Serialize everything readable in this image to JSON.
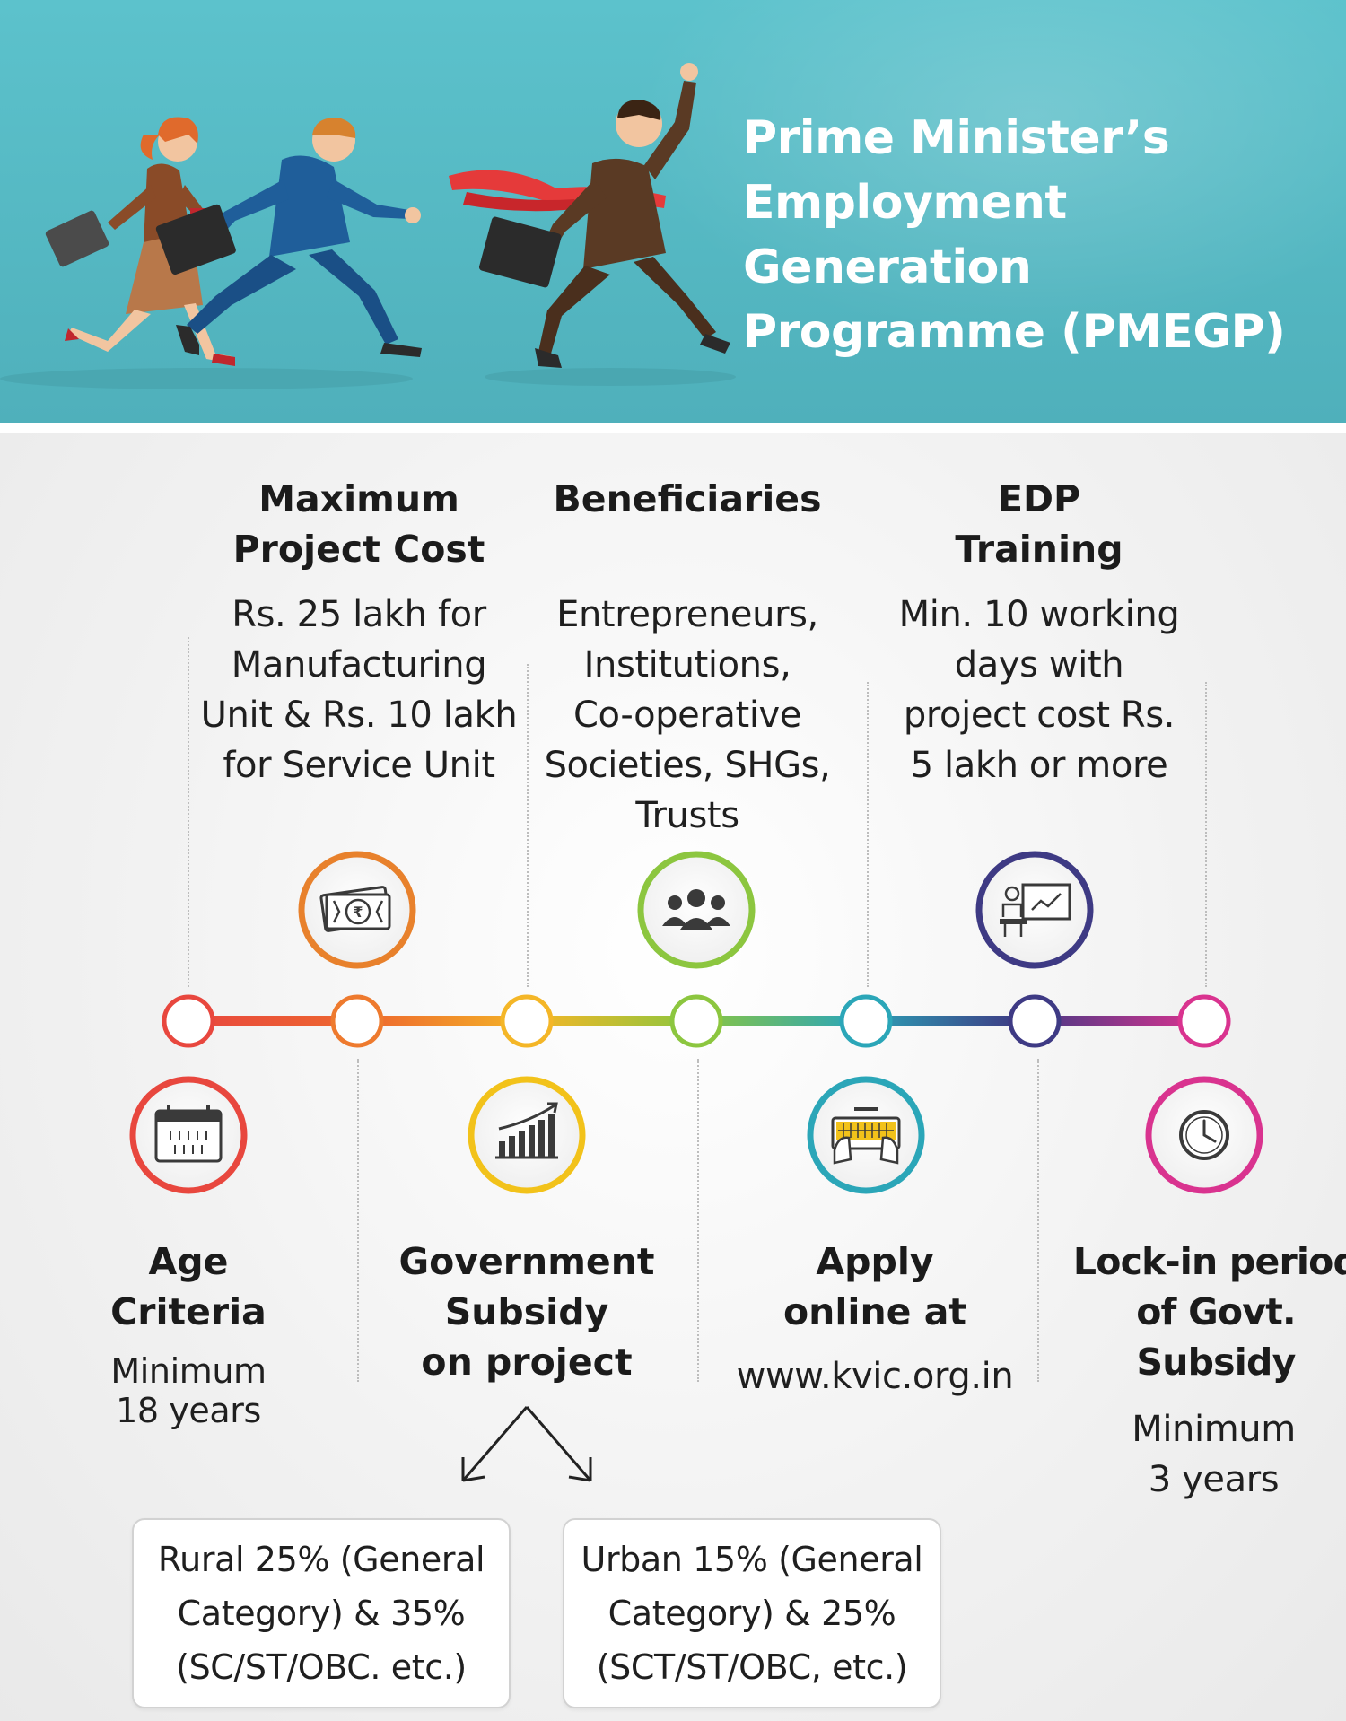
{
  "header": {
    "title_lines": [
      "Prime Minister’s",
      "Employment Generation",
      "Programme (PMEGP)"
    ]
  },
  "top_items": [
    {
      "title_lines": [
        "Maximum",
        "Project Cost"
      ],
      "text_lines": [
        "Rs. 25 lakh for",
        "Manufacturing",
        "Unit & Rs. 10 lakh",
        "for Service Unit"
      ],
      "icon": "rupee-note-icon",
      "color": "#e8812c"
    },
    {
      "title_lines": [
        "Beneficiaries"
      ],
      "text_lines": [
        "Entrepreneurs,",
        "Institutions,",
        "Co-operative",
        "Societies, SHGs,",
        "Trusts"
      ],
      "icon": "group-people-icon",
      "color": "#8cc63f"
    },
    {
      "title_lines": [
        "EDP",
        "Training"
      ],
      "text_lines": [
        "Min. 10 working",
        "days with",
        "project cost Rs.",
        "5 lakh or more"
      ],
      "icon": "presentation-trainer-icon",
      "color": "#3e3a84"
    }
  ],
  "bottom_items": [
    {
      "title_lines": [
        "Age",
        "Criteria"
      ],
      "text_lines": [
        "Minimum",
        "18 years"
      ],
      "icon": "calendar-icon",
      "color": "#e8473e"
    },
    {
      "title_lines": [
        "Government",
        "Subsidy",
        "on project"
      ],
      "text_lines": [],
      "icon": "bar-chart-growth-icon",
      "color": "#f2c21a"
    },
    {
      "title_lines": [
        "Apply",
        "online at"
      ],
      "text_lines": [
        "www.kvic.org.in"
      ],
      "icon": "keyboard-hands-icon",
      "color": "#2ba6b8"
    },
    {
      "title_lines": [
        "Lock-in period",
        "of Govt.",
        "Subsidy"
      ],
      "text_lines": [
        "Minimum",
        "3 years"
      ],
      "icon": "clock-icon",
      "color": "#d9338f"
    }
  ],
  "subsidy_boxes": [
    {
      "lines": [
        "Rural 25% (General",
        "Category) & 35%",
        "(SC/ST/OBC. etc.)"
      ]
    },
    {
      "lines": [
        "Urban 15% (General",
        "Category) & 25%",
        "(SCT/ST/OBC, etc.)"
      ]
    }
  ],
  "timeline": {
    "node_colors": [
      "#e8473e",
      "#ee7a2e",
      "#f4b627",
      "#8cc63f",
      "#2ba6b8",
      "#3e3a84",
      "#d9338f"
    ]
  }
}
